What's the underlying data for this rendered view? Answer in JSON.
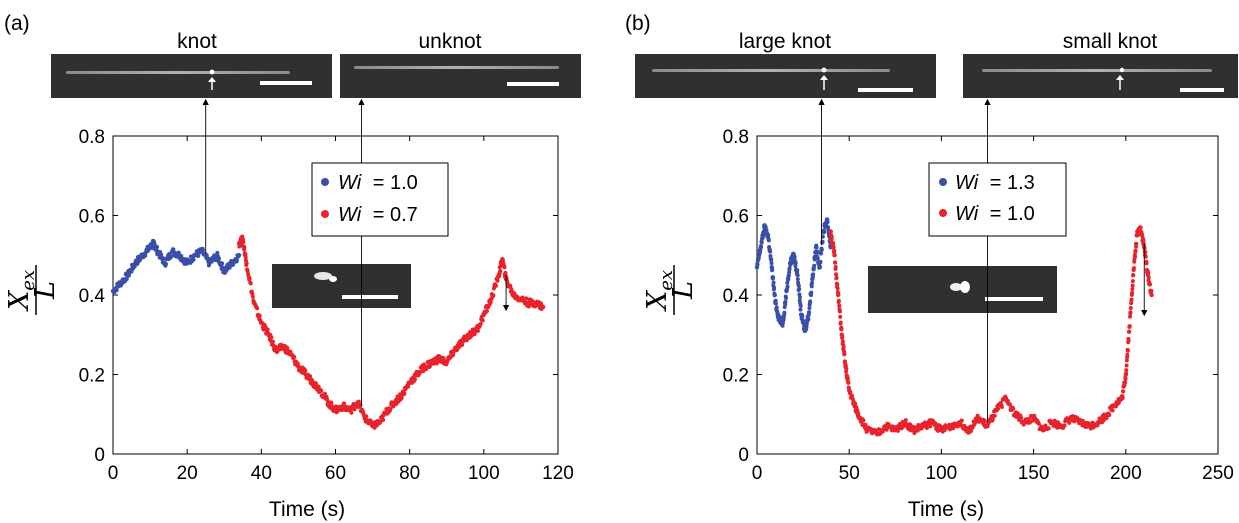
{
  "chart_data": [
    {
      "panel": "(a)",
      "type": "scatter",
      "xlabel": "Time (s)",
      "ylabel": {
        "numerator": "X",
        "numerator_sub": "ex",
        "denominator": "L"
      },
      "xlim": [
        0,
        120
      ],
      "ylim": [
        0,
        0.8
      ],
      "xticks": [
        0,
        20,
        40,
        60,
        80,
        100,
        120
      ],
      "yticks": [
        0,
        0.2,
        0.4,
        0.6,
        0.8
      ],
      "grid": false,
      "legend_position": "top-right",
      "series": [
        {
          "name_var": "Wi",
          "name_value": "= 1.0",
          "color": "#3a4fa8",
          "x": [
            0,
            2,
            4,
            6,
            8,
            10,
            11,
            12,
            14,
            16,
            18,
            20,
            22,
            24,
            26,
            28,
            30,
            32,
            34
          ],
          "y": [
            0.41,
            0.43,
            0.45,
            0.48,
            0.5,
            0.52,
            0.53,
            0.51,
            0.48,
            0.51,
            0.5,
            0.48,
            0.5,
            0.51,
            0.48,
            0.5,
            0.46,
            0.48,
            0.5
          ]
        },
        {
          "name_var": "Wi",
          "name_value": "= 0.7",
          "color": "#e8232b",
          "x": [
            34,
            35,
            36,
            38,
            40,
            42,
            44,
            46,
            48,
            50,
            52,
            54,
            56,
            58,
            60,
            62,
            64,
            66,
            68,
            70,
            72,
            74,
            76,
            78,
            80,
            82,
            84,
            86,
            88,
            90,
            92,
            94,
            96,
            98,
            100,
            102,
            104,
            105,
            106,
            108,
            110,
            112,
            114,
            116
          ],
          "y": [
            0.53,
            0.54,
            0.48,
            0.38,
            0.33,
            0.3,
            0.26,
            0.27,
            0.25,
            0.22,
            0.2,
            0.18,
            0.16,
            0.13,
            0.11,
            0.12,
            0.11,
            0.13,
            0.09,
            0.07,
            0.08,
            0.11,
            0.13,
            0.15,
            0.18,
            0.2,
            0.22,
            0.23,
            0.24,
            0.23,
            0.26,
            0.28,
            0.3,
            0.31,
            0.35,
            0.39,
            0.45,
            0.49,
            0.44,
            0.4,
            0.39,
            0.38,
            0.38,
            0.37
          ]
        }
      ],
      "captions": [
        "knot",
        "unknot"
      ],
      "annotated_x": [
        25,
        67,
        106
      ]
    },
    {
      "panel": "(b)",
      "type": "scatter",
      "xlabel": "Time (s)",
      "ylabel": {
        "numerator": "X",
        "numerator_sub": "ex",
        "denominator": "L"
      },
      "xlim": [
        0,
        250
      ],
      "ylim": [
        0,
        0.8
      ],
      "xticks": [
        0,
        50,
        100,
        150,
        200,
        250
      ],
      "yticks": [
        0,
        0.2,
        0.4,
        0.6,
        0.8
      ],
      "grid": false,
      "legend_position": "top-right",
      "series": [
        {
          "name_var": "Wi",
          "name_value": "= 1.3",
          "color": "#3a4fa8",
          "x": [
            0,
            2,
            4,
            6,
            8,
            10,
            12,
            14,
            16,
            18,
            20,
            22,
            24,
            26,
            28,
            30,
            32,
            34,
            36,
            38,
            40
          ],
          "y": [
            0.47,
            0.52,
            0.57,
            0.55,
            0.47,
            0.38,
            0.34,
            0.33,
            0.41,
            0.48,
            0.5,
            0.45,
            0.35,
            0.31,
            0.35,
            0.44,
            0.52,
            0.47,
            0.56,
            0.59,
            0.52
          ]
        },
        {
          "name_var": "Wi",
          "name_value": "= 1.0",
          "color": "#e8232b",
          "x": [
            40,
            42,
            44,
            46,
            48,
            50,
            53,
            56,
            60,
            65,
            70,
            75,
            80,
            85,
            90,
            95,
            100,
            105,
            110,
            115,
            120,
            125,
            130,
            135,
            140,
            145,
            150,
            155,
            160,
            165,
            170,
            175,
            180,
            185,
            190,
            195,
            198,
            200,
            202,
            204,
            206,
            208,
            210,
            212,
            214
          ],
          "y": [
            0.56,
            0.5,
            0.4,
            0.3,
            0.22,
            0.16,
            0.12,
            0.09,
            0.06,
            0.05,
            0.07,
            0.06,
            0.08,
            0.06,
            0.07,
            0.08,
            0.06,
            0.07,
            0.08,
            0.06,
            0.09,
            0.07,
            0.11,
            0.14,
            0.1,
            0.08,
            0.09,
            0.06,
            0.08,
            0.07,
            0.09,
            0.08,
            0.07,
            0.08,
            0.1,
            0.13,
            0.14,
            0.2,
            0.32,
            0.45,
            0.55,
            0.57,
            0.52,
            0.45,
            0.4
          ]
        }
      ],
      "captions": [
        "large knot",
        "small knot"
      ],
      "annotated_x": [
        35,
        125,
        210
      ]
    }
  ]
}
